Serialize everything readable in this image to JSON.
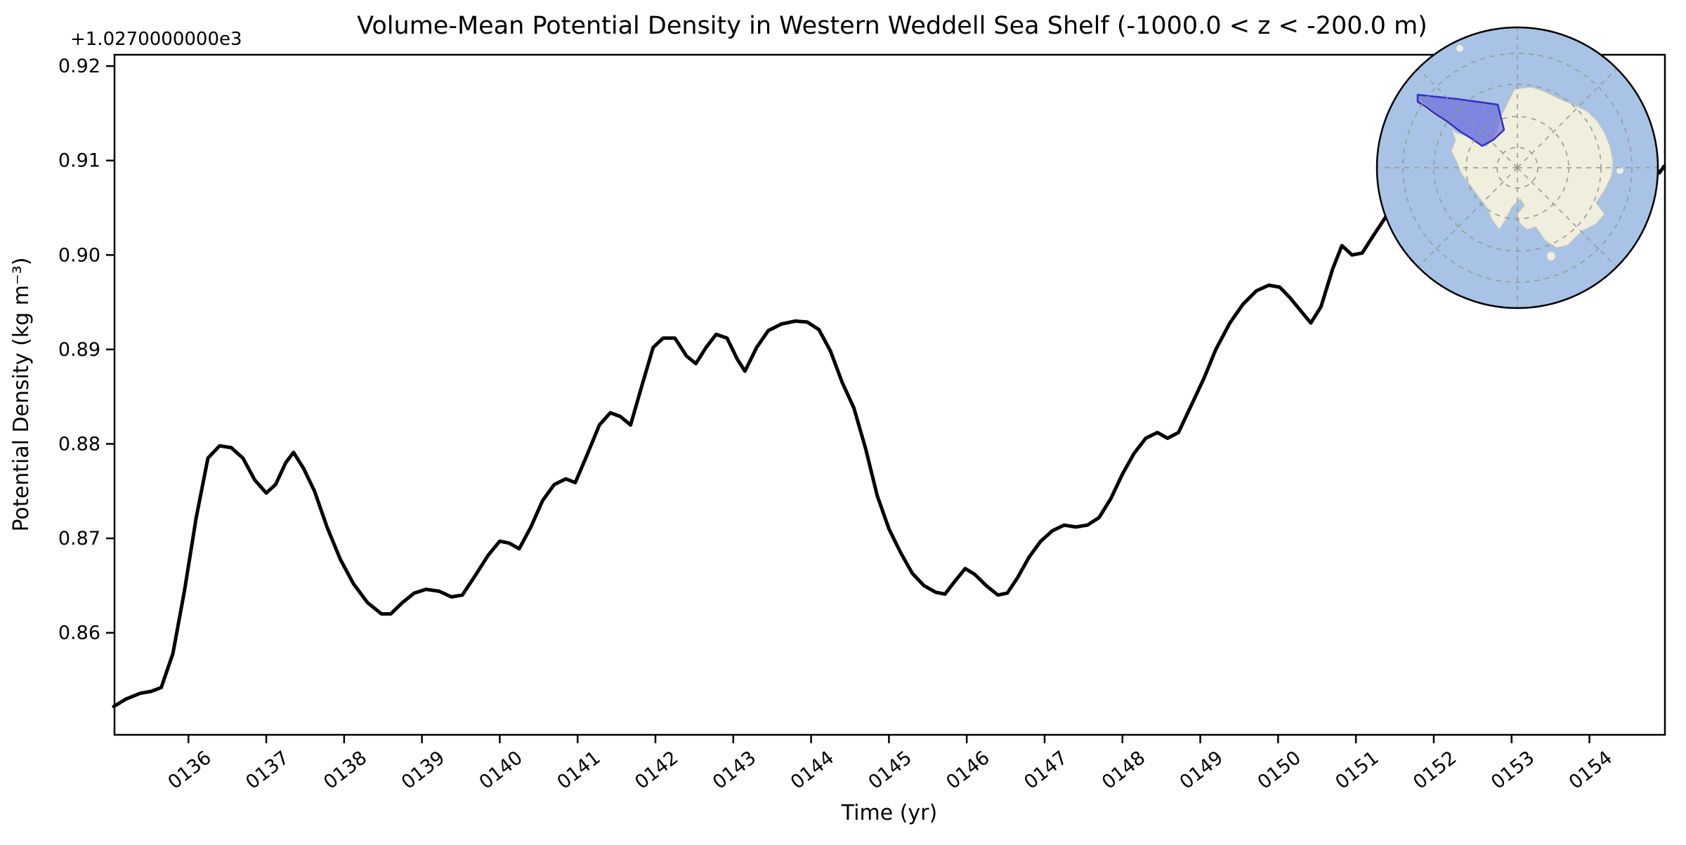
{
  "title": "Volume-Mean Potential Density in Western Weddell Sea Shelf (-1000.0 < z < -200.0 m)",
  "axes": {
    "xlabel": "Time (yr)",
    "ylabel": "Potential Density (kg m⁻³)",
    "offset_text": "+1.0270000000e3",
    "xticklabels": [
      "0136",
      "0137",
      "0138",
      "0139",
      "0140",
      "0141",
      "0142",
      "0143",
      "0144",
      "0145",
      "0146",
      "0147",
      "0148",
      "0149",
      "0150",
      "0151",
      "0152",
      "0153",
      "0154"
    ],
    "xticks": [
      136,
      137,
      138,
      139,
      140,
      141,
      142,
      143,
      144,
      145,
      146,
      147,
      148,
      149,
      150,
      151,
      152,
      153,
      154
    ],
    "yticklabels": [
      "0.86",
      "0.87",
      "0.88",
      "0.89",
      "0.90",
      "0.91",
      "0.92"
    ],
    "yticks": [
      0.86,
      0.87,
      0.88,
      0.89,
      0.9,
      0.91,
      0.92
    ],
    "xlim": [
      135.05,
      154.97
    ],
    "ylim": [
      0.8492,
      0.9212
    ],
    "y_offset": 1027.0,
    "line_color": "#000000",
    "tick_label_rotation_deg": 38
  },
  "chart_data": {
    "type": "line",
    "title": "Volume-Mean Potential Density in Western Weddell Sea Shelf (-1000.0 < z < -200.0 m)",
    "xlabel": "Time (yr)",
    "ylabel": "Potential Density (kg m⁻³)",
    "xlim": [
      135.05,
      154.97
    ],
    "ylim_with_offset": [
      1027.8492,
      1027.9212
    ],
    "grid": false,
    "legend": "none",
    "series": [
      {
        "name": "volume-mean potential density",
        "color": "#000000",
        "x": [
          135.04,
          135.2,
          135.38,
          135.52,
          135.65,
          135.8,
          135.95,
          136.1,
          136.25,
          136.4,
          136.55,
          136.7,
          136.85,
          137.0,
          137.12,
          137.25,
          137.35,
          137.48,
          137.62,
          137.78,
          137.95,
          138.12,
          138.3,
          138.48,
          138.6,
          138.75,
          138.9,
          139.05,
          139.22,
          139.38,
          139.52,
          139.68,
          139.85,
          140.0,
          140.12,
          140.25,
          140.4,
          140.55,
          140.7,
          140.85,
          140.97,
          141.12,
          141.28,
          141.42,
          141.55,
          141.68,
          141.82,
          141.97,
          142.1,
          142.25,
          142.4,
          142.52,
          142.65,
          142.78,
          142.92,
          143.05,
          143.15,
          143.3,
          143.45,
          143.62,
          143.8,
          143.95,
          144.1,
          144.25,
          144.4,
          144.55,
          144.7,
          144.85,
          145.0,
          145.15,
          145.3,
          145.45,
          145.6,
          145.72,
          145.85,
          145.98,
          146.1,
          146.25,
          146.4,
          146.52,
          146.65,
          146.8,
          146.95,
          147.1,
          147.25,
          147.4,
          147.55,
          147.7,
          147.85,
          148.0,
          148.15,
          148.3,
          148.45,
          148.58,
          148.72,
          148.88,
          149.05,
          149.2,
          149.38,
          149.55,
          149.72,
          149.88,
          150.02,
          150.15,
          150.3,
          150.42,
          150.55,
          150.7,
          150.82,
          150.95,
          151.08,
          151.22,
          151.38,
          151.6,
          151.85,
          152.1,
          152.4,
          152.7,
          153.0,
          153.25,
          153.5,
          153.75,
          154.0,
          154.25,
          154.5,
          154.7,
          154.82,
          154.9,
          154.96
        ],
        "y": [
          1027.8522,
          1027.853,
          1027.8536,
          1027.8538,
          1027.8542,
          1027.8578,
          1027.8645,
          1027.8722,
          1027.8785,
          1027.8798,
          1027.8796,
          1027.8785,
          1027.8762,
          1027.8748,
          1027.8757,
          1027.878,
          1027.8791,
          1027.8774,
          1027.875,
          1027.8712,
          1027.8678,
          1027.8652,
          1027.8632,
          1027.862,
          1027.862,
          1027.8632,
          1027.8642,
          1027.8646,
          1027.8644,
          1027.8638,
          1027.864,
          1027.866,
          1027.8682,
          1027.8697,
          1027.8695,
          1027.8689,
          1027.8712,
          1027.874,
          1027.8757,
          1027.8763,
          1027.8759,
          1027.8788,
          1027.882,
          1027.8833,
          1027.8829,
          1027.882,
          1027.886,
          1027.8902,
          1027.8912,
          1027.8912,
          1027.8893,
          1027.8885,
          1027.8902,
          1027.8916,
          1027.8912,
          1027.889,
          1027.8877,
          1027.8902,
          1027.892,
          1027.8927,
          1027.893,
          1027.8929,
          1027.8921,
          1027.8898,
          1027.8865,
          1027.8838,
          1027.8795,
          1027.8745,
          1027.871,
          1027.8685,
          1027.8663,
          1027.865,
          1027.8643,
          1027.8641,
          1027.8655,
          1027.8668,
          1027.8662,
          1027.865,
          1027.864,
          1027.8642,
          1027.8658,
          1027.868,
          1027.8697,
          1027.8708,
          1027.8714,
          1027.8712,
          1027.8714,
          1027.8722,
          1027.8742,
          1027.8768,
          1027.879,
          1027.8806,
          1027.8812,
          1027.8806,
          1027.8812,
          1027.884,
          1027.887,
          1027.89,
          1027.8928,
          1027.8948,
          1027.8962,
          1027.8968,
          1027.8966,
          1027.8955,
          1027.894,
          1027.8928,
          1027.8945,
          1027.8985,
          1027.901,
          1027.9,
          1027.9002,
          1027.902,
          1027.904,
          1027.9068,
          1027.9092,
          1027.9112,
          1027.9132,
          1027.915,
          1027.9163,
          1027.917,
          1027.9168,
          1027.9152,
          1027.9135,
          1027.9118,
          1027.9104,
          1027.91,
          1027.9094,
          1027.9087,
          1027.9094
        ]
      }
    ]
  },
  "inset_map": {
    "ocean_color": "#a8c3e6",
    "land_color": "#f0eedd",
    "region_fill": "#5a52d8",
    "region_fill_opacity": 0.55,
    "region_edge": "#332fc0",
    "grid_color": "#97968e",
    "boundary_color": "#000000"
  }
}
